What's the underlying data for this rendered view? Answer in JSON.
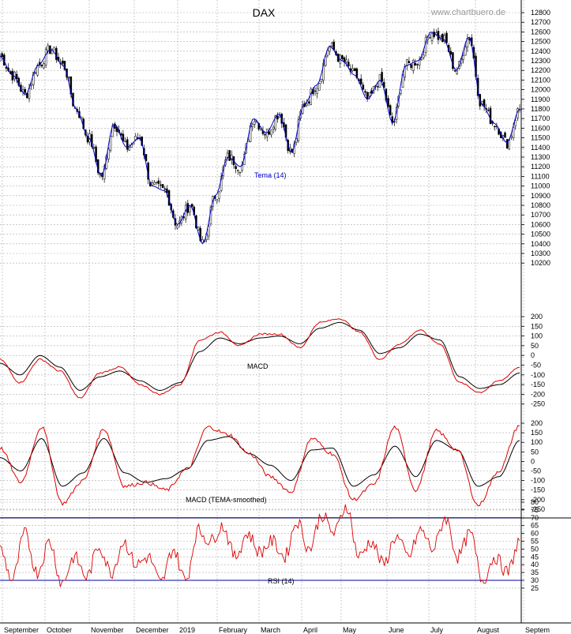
{
  "chart_data": {
    "type": "line",
    "title": "DAX",
    "watermark": "www.chartbuero.de",
    "months": [
      "September",
      "October",
      "November",
      "December",
      "2019",
      "February",
      "March",
      "April",
      "May",
      "June",
      "July",
      "August",
      "Septem"
    ],
    "grid": true,
    "colors": {
      "price": "#000000",
      "tema": "#0000cc",
      "red": "#dd0000",
      "black": "#000000",
      "rsi_lines": "#0000aa"
    },
    "panels": [
      {
        "name": "price",
        "ticks": [
          10200,
          10300,
          10400,
          10500,
          10600,
          10700,
          10800,
          10900,
          11000,
          11100,
          11200,
          11300,
          11400,
          11500,
          11600,
          11700,
          11800,
          11900,
          12000,
          12100,
          12200,
          12300,
          12400,
          12500,
          12600,
          12700,
          12800
        ],
        "ylim": [
          10150,
          12850
        ],
        "series_label": "Tema (14)",
        "close_anchors": [
          12350,
          12150,
          11950,
          12250,
          12420,
          12250,
          11800,
          11500,
          11100,
          11650,
          11400,
          11500,
          11000,
          10950,
          10600,
          10800,
          10400,
          10900,
          11300,
          11200,
          11700,
          11550,
          11750,
          11350,
          11850,
          12050,
          12450,
          12300,
          12150,
          11900,
          12100,
          11650,
          12250,
          12300,
          12600,
          12520,
          12200,
          12550,
          11850,
          11650,
          11450,
          11800
        ]
      },
      {
        "name": "MACD",
        "ticks": [
          -250,
          -200,
          -150,
          -100,
          -50,
          0,
          50,
          100,
          150,
          200
        ],
        "ylim": [
          -275,
          230
        ],
        "macd_anchors": [
          -20,
          -140,
          -20,
          -80,
          -220,
          -90,
          -60,
          -150,
          -200,
          -150,
          80,
          120,
          50,
          110,
          110,
          40,
          170,
          190,
          120,
          -20,
          60,
          130,
          60,
          -140,
          -190,
          -130,
          -60
        ],
        "signal_anchors": [
          -40,
          -100,
          0,
          -60,
          -180,
          -110,
          -80,
          -130,
          -180,
          -140,
          20,
          90,
          60,
          90,
          100,
          60,
          140,
          170,
          130,
          10,
          40,
          110,
          80,
          -110,
          -170,
          -150,
          -90
        ]
      },
      {
        "name": "MACD (TEMA-smoothed)",
        "ticks": [
          -250,
          -200,
          -150,
          -100,
          -50,
          0,
          50,
          100,
          150,
          200
        ],
        "ylim": [
          -275,
          235
        ],
        "macd_anchors": [
          70,
          -110,
          180,
          -220,
          -100,
          170,
          -130,
          -110,
          -150,
          -40,
          180,
          140,
          40,
          -80,
          -160,
          120,
          40,
          -200,
          -120,
          180,
          -150,
          160,
          60,
          -230,
          -50,
          190
        ],
        "signal_anchors": [
          20,
          -50,
          120,
          -130,
          -60,
          120,
          -60,
          -110,
          -90,
          -40,
          110,
          130,
          40,
          -20,
          -100,
          60,
          70,
          -130,
          -70,
          80,
          -80,
          110,
          60,
          -130,
          -80,
          110
        ]
      },
      {
        "name": "RSI (14)",
        "ticks": [
          25,
          30,
          35,
          40,
          45,
          50,
          55,
          60,
          65,
          70,
          75,
          80
        ],
        "ylim": [
          22,
          82
        ],
        "hlines": [
          30,
          70
        ],
        "rsi_anchors": [
          50,
          30,
          60,
          35,
          55,
          28,
          45,
          32,
          52,
          35,
          55,
          40,
          45,
          28,
          50,
          30,
          62,
          55,
          65,
          45,
          60,
          48,
          55,
          45,
          68,
          50,
          72,
          60,
          78,
          45,
          55,
          40,
          58,
          45,
          62,
          50,
          70,
          45,
          60,
          30,
          45,
          35,
          55
        ]
      }
    ]
  }
}
